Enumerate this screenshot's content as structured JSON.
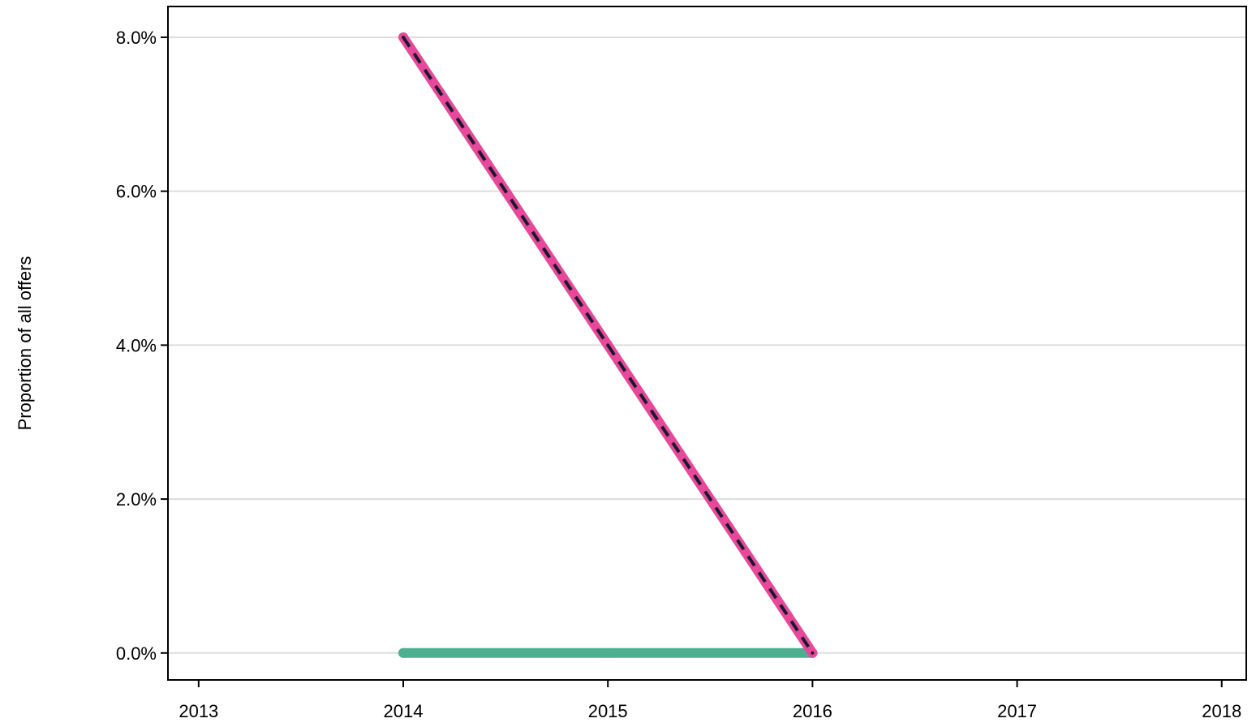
{
  "chart_data": {
    "type": "line",
    "title": "",
    "xlabel": "",
    "ylabel": "Proportion of all offers",
    "x_ticks": [
      "2013",
      "2014",
      "2015",
      "2016",
      "2017",
      "2018"
    ],
    "y_ticks": [
      "0.0%",
      "2.0%",
      "4.0%",
      "6.0%",
      "8.0%"
    ],
    "xlim": [
      2012.85,
      2018.12
    ],
    "ylim": [
      -0.35,
      8.4
    ],
    "grid": "horizontal",
    "legend": "none",
    "series": [
      {
        "x": [
          2014,
          2015,
          2016
        ],
        "values": [
          0.0,
          0.0,
          0.0
        ],
        "color": "#4caf8f",
        "style": "solid"
      },
      {
        "x": [
          2014,
          2015,
          2016
        ],
        "values": [
          8.0,
          4.0,
          0.0
        ],
        "color": "#e8489a",
        "style": "solid"
      },
      {
        "x": [
          2014,
          2015,
          2016
        ],
        "values": [
          8.0,
          4.0,
          0.0
        ],
        "color": "#1a1a2e",
        "style": "dashed"
      }
    ]
  }
}
